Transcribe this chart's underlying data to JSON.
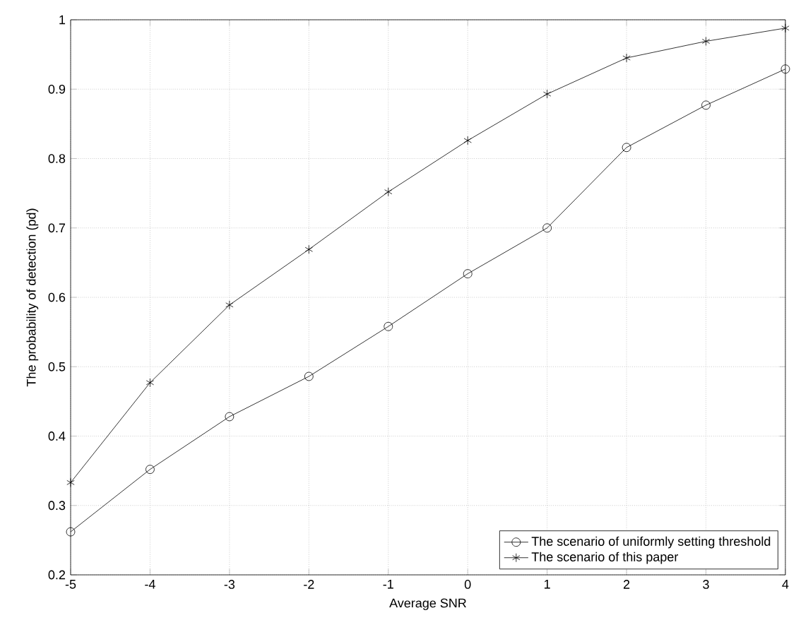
{
  "chart_data": {
    "type": "line",
    "xlabel": "Average SNR",
    "ylabel": "The probability of detection (pd)",
    "x": [
      -5,
      -4,
      -3,
      -2,
      -1,
      0,
      1,
      2,
      3,
      4
    ],
    "series": [
      {
        "name": "The scenario of uniformly setting threshold",
        "color": "#000000",
        "marker": "circle",
        "values": [
          0.262,
          0.352,
          0.428,
          0.486,
          0.558,
          0.634,
          0.7,
          0.816,
          0.877,
          0.929
        ]
      },
      {
        "name": "The scenario of this paper",
        "color": "#000000",
        "marker": "cross",
        "values": [
          0.333,
          0.477,
          0.589,
          0.669,
          0.752,
          0.826,
          0.893,
          0.945,
          0.969,
          0.988
        ]
      }
    ],
    "xlim": [
      -5,
      4
    ],
    "ylim": [
      0.2,
      1
    ],
    "xticks": [
      -5,
      -4,
      -3,
      -2,
      -1,
      0,
      1,
      2,
      3,
      4
    ],
    "yticks": [
      0.2,
      0.3,
      0.4,
      0.5,
      0.6,
      0.7,
      0.8,
      0.9,
      1
    ],
    "grid": true,
    "legend": "bottom right",
    "line_style": "solid"
  }
}
